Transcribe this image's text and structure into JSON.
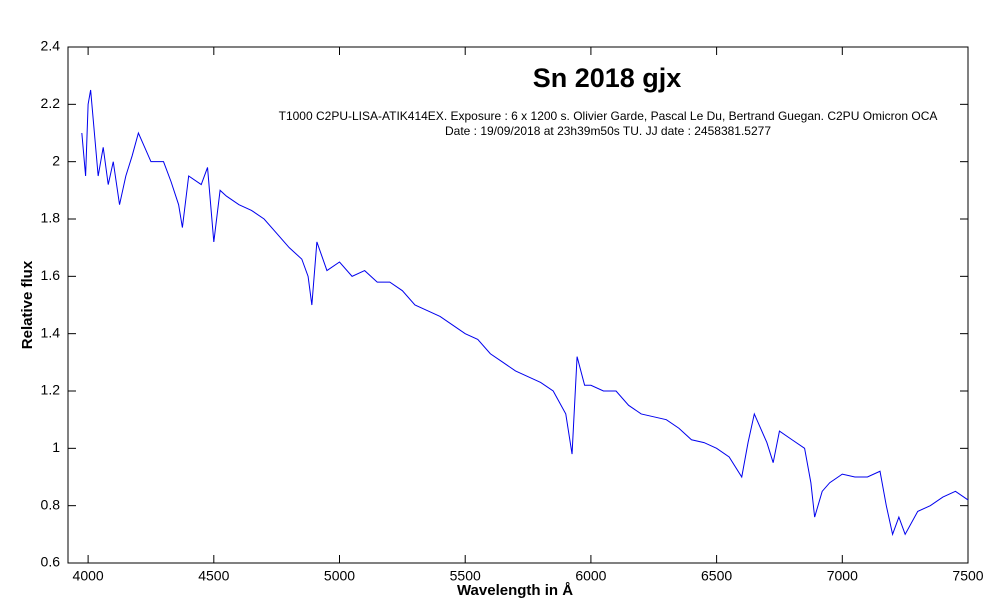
{
  "chart_data": {
    "type": "line",
    "title": "Sn 2018 gjx",
    "subtitle": [
      "T1000 C2PU-LISA-ATIK414EX. Exposure : 6 x 1200 s. Olivier Garde, Pascal Le Du, Bertrand Guegan. C2PU Omicron OCA",
      "Date : 19/09/2018 at 23h39m50s TU. JJ date : 2458381.5277"
    ],
    "x_label": "Wavelength in Å",
    "y_label": "Relative flux",
    "xlim": [
      3920,
      7500
    ],
    "ylim": [
      0.6,
      2.4
    ],
    "xticks": [
      4000,
      4500,
      5000,
      5500,
      6000,
      6500,
      7000,
      7500
    ],
    "yticks": [
      0.6,
      0.8,
      1,
      1.2,
      1.4,
      1.6,
      1.8,
      2,
      2.2,
      2.4
    ],
    "series": [
      {
        "color": "#0000ee",
        "x": [
          3975,
          3990,
          4000,
          4010,
          4025,
          4040,
          4060,
          4080,
          4100,
          4125,
          4150,
          4175,
          4200,
          4225,
          4250,
          4300,
          4330,
          4360,
          4375,
          4400,
          4450,
          4475,
          4500,
          4525,
          4550,
          4600,
          4650,
          4700,
          4750,
          4800,
          4850,
          4875,
          4890,
          4910,
          4950,
          5000,
          5050,
          5100,
          5150,
          5200,
          5250,
          5300,
          5350,
          5400,
          5450,
          5500,
          5550,
          5600,
          5650,
          5700,
          5750,
          5800,
          5850,
          5900,
          5925,
          5945,
          5975,
          6000,
          6050,
          6100,
          6150,
          6200,
          6250,
          6300,
          6350,
          6400,
          6450,
          6500,
          6550,
          6600,
          6625,
          6650,
          6700,
          6725,
          6750,
          6800,
          6850,
          6875,
          6890,
          6920,
          6950,
          7000,
          7050,
          7100,
          7150,
          7175,
          7200,
          7225,
          7250,
          7300,
          7350,
          7400,
          7450,
          7500
        ],
        "values": [
          2.1,
          1.95,
          2.2,
          2.25,
          2.1,
          1.95,
          2.05,
          1.92,
          2.0,
          1.85,
          1.95,
          2.02,
          2.1,
          2.05,
          2.0,
          2.0,
          1.93,
          1.85,
          1.77,
          1.95,
          1.92,
          1.98,
          1.72,
          1.9,
          1.88,
          1.85,
          1.83,
          1.8,
          1.75,
          1.7,
          1.66,
          1.6,
          1.5,
          1.72,
          1.62,
          1.65,
          1.6,
          1.62,
          1.58,
          1.58,
          1.55,
          1.5,
          1.48,
          1.46,
          1.43,
          1.4,
          1.38,
          1.33,
          1.3,
          1.27,
          1.25,
          1.23,
          1.2,
          1.12,
          0.98,
          1.32,
          1.22,
          1.22,
          1.2,
          1.2,
          1.15,
          1.12,
          1.11,
          1.1,
          1.07,
          1.03,
          1.02,
          1.0,
          0.97,
          0.9,
          1.02,
          1.12,
          1.02,
          0.95,
          1.06,
          1.03,
          1.0,
          0.88,
          0.76,
          0.85,
          0.88,
          0.91,
          0.9,
          0.9,
          0.92,
          0.8,
          0.7,
          0.76,
          0.7,
          0.78,
          0.8,
          0.83,
          0.85,
          0.82
        ]
      }
    ]
  }
}
